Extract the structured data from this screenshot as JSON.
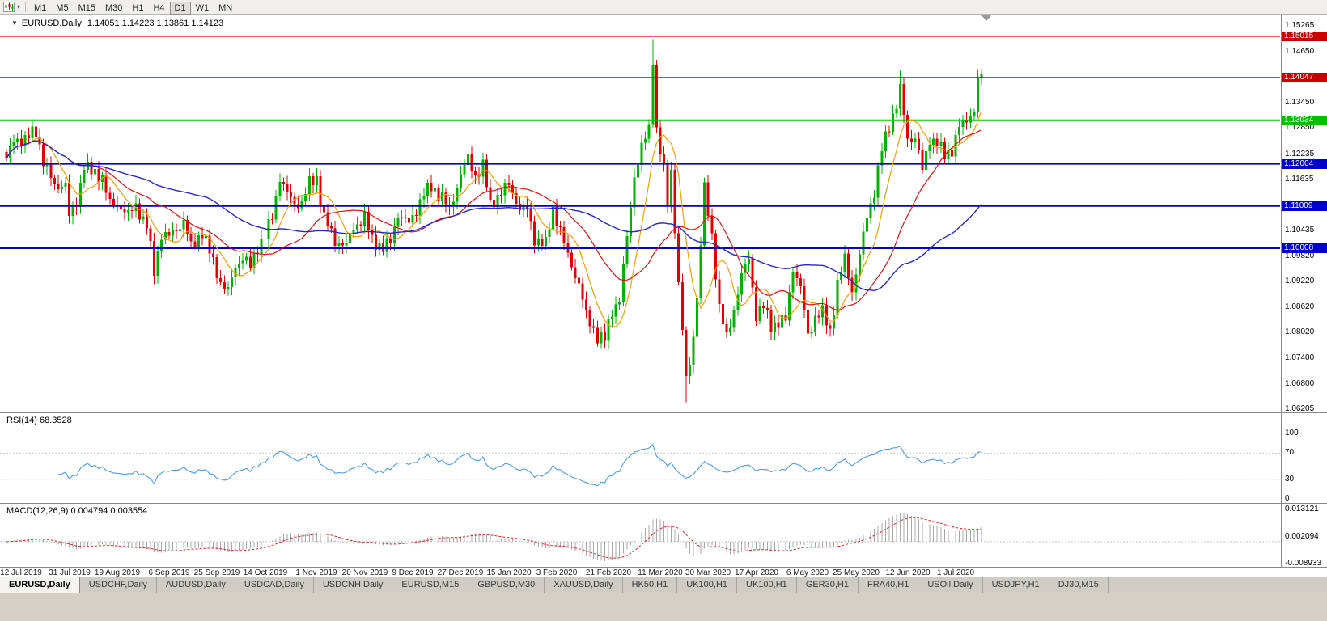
{
  "toolbar": {
    "dropdown_arrow": "▾",
    "icons": {
      "chart_type_icon": "mini-candlestick-chart",
      "dropdown_arrow_icon": "triangle-down"
    },
    "timeframes": [
      {
        "label": "M1",
        "active": false
      },
      {
        "label": "M5",
        "active": false
      },
      {
        "label": "M15",
        "active": false
      },
      {
        "label": "M30",
        "active": false
      },
      {
        "label": "H1",
        "active": false
      },
      {
        "label": "H4",
        "active": false
      },
      {
        "label": "D1",
        "active": true
      },
      {
        "label": "W1",
        "active": false
      },
      {
        "label": "MN",
        "active": false
      }
    ]
  },
  "chart_header": {
    "collapse": "▼",
    "title": "EURUSD,Daily",
    "ohlc": "1.14051 1.14223 1.13861 1.14123"
  },
  "colors": {
    "up": "#00B200",
    "down": "#E00000",
    "ma_fast": "#F0A000",
    "ma_mid": "#E01010",
    "ma_slow": "#2828C8",
    "rsi": "#4A9BE8",
    "macd_hist": "#A8A8A8",
    "macd_signal": "#E02020",
    "line_red": "#C80000",
    "line_green": "#00C000",
    "line_blue": "#0000C8"
  },
  "chart_data": {
    "type": "candlestick",
    "symbol": "EURUSD",
    "timeframe": "Daily",
    "last_bar": {
      "open": 1.14051,
      "high": 1.14223,
      "low": 1.13861,
      "close": 1.14123
    },
    "bars": 265,
    "price_axis": {
      "min": 1.06205,
      "max": 1.15265,
      "ticks": [
        1.15265,
        1.1465,
        1.1345,
        1.1285,
        1.12235,
        1.11635,
        1.10435,
        1.0982,
        1.0922,
        1.0862,
        1.0802,
        1.074,
        1.068,
        1.06205
      ]
    },
    "hlines": [
      {
        "price": 1.15015,
        "color": "#C80000",
        "width": 1
      },
      {
        "price": 1.14047,
        "color": "#C80000",
        "width": 1
      },
      {
        "price": 1.13034,
        "color": "#00C000",
        "width": 2
      },
      {
        "price": 1.12004,
        "color": "#0000C8",
        "width": 2
      },
      {
        "price": 1.11009,
        "color": "#0000C8",
        "width": 2
      },
      {
        "price": 1.10008,
        "color": "#0000C8",
        "width": 2
      }
    ],
    "x_labels": [
      {
        "label": "12 Jul 2019",
        "bar": 4
      },
      {
        "label": "31 Jul 2019",
        "bar": 17
      },
      {
        "label": "19 Aug 2019",
        "bar": 30
      },
      {
        "label": "6 Sep 2019",
        "bar": 44
      },
      {
        "label": "25 Sep 2019",
        "bar": 57
      },
      {
        "label": "14 Oct 2019",
        "bar": 70
      },
      {
        "label": "1 Nov 2019",
        "bar": 84
      },
      {
        "label": "20 Nov 2019",
        "bar": 97
      },
      {
        "label": "9 Dec 2019",
        "bar": 110
      },
      {
        "label": "27 Dec 2019",
        "bar": 123
      },
      {
        "label": "15 Jan 2020",
        "bar": 136
      },
      {
        "label": "3 Feb 2020",
        "bar": 149
      },
      {
        "label": "21 Feb 2020",
        "bar": 163
      },
      {
        "label": "11 Mar 2020",
        "bar": 177
      },
      {
        "label": "30 Mar 2020",
        "bar": 190
      },
      {
        "label": "17 Apr 2020",
        "bar": 203
      },
      {
        "label": "6 May 2020",
        "bar": 217
      },
      {
        "label": "25 May 2020",
        "bar": 230
      },
      {
        "label": "12 Jun 2020",
        "bar": 244
      },
      {
        "label": "1 Jul 2020",
        "bar": 257
      }
    ],
    "close_anchors": [
      [
        0,
        1.1213
      ],
      [
        2,
        1.1253
      ],
      [
        5,
        1.1262
      ],
      [
        8,
        1.1275
      ],
      [
        10,
        1.121
      ],
      [
        13,
        1.1145
      ],
      [
        16,
        1.1155
      ],
      [
        17,
        1.1075
      ],
      [
        19,
        1.1108
      ],
      [
        21,
        1.12
      ],
      [
        23,
        1.118
      ],
      [
        26,
        1.117
      ],
      [
        28,
        1.1105
      ],
      [
        31,
        1.11
      ],
      [
        33,
        1.108
      ],
      [
        35,
        1.11
      ],
      [
        38,
        1.1055
      ],
      [
        40,
        1.0945
      ],
      [
        42,
        1.1035
      ],
      [
        44,
        1.1028
      ],
      [
        46,
        1.1045
      ],
      [
        48,
        1.1065
      ],
      [
        50,
        1.1003
      ],
      [
        53,
        1.104
      ],
      [
        55,
        1.0992
      ],
      [
        58,
        1.092
      ],
      [
        60,
        1.0899
      ],
      [
        62,
        1.0958
      ],
      [
        64,
        1.0979
      ],
      [
        66,
        1.0957
      ],
      [
        68,
        1.1005
      ],
      [
        70,
        1.103
      ],
      [
        72,
        1.1075
      ],
      [
        74,
        1.117
      ],
      [
        76,
        1.113
      ],
      [
        78,
        1.1105
      ],
      [
        80,
        1.111
      ],
      [
        82,
        1.1155
      ],
      [
        84,
        1.1166
      ],
      [
        86,
        1.1073
      ],
      [
        89,
        1.1018
      ],
      [
        92,
        1.1007
      ],
      [
        94,
        1.1051
      ],
      [
        97,
        1.1073
      ],
      [
        99,
        1.1021
      ],
      [
        102,
        1.1
      ],
      [
        104,
        1.1018
      ],
      [
        106,
        1.1082
      ],
      [
        109,
        1.1059
      ],
      [
        111,
        1.1092
      ],
      [
        113,
        1.1131
      ],
      [
        115,
        1.1145
      ],
      [
        118,
        1.1122
      ],
      [
        120,
        1.1089
      ],
      [
        123,
        1.1177
      ],
      [
        125,
        1.1212
      ],
      [
        127,
        1.1172
      ],
      [
        129,
        1.1196
      ],
      [
        131,
        1.1103
      ],
      [
        134,
        1.1134
      ],
      [
        136,
        1.115
      ],
      [
        139,
        1.1095
      ],
      [
        141,
        1.1093
      ],
      [
        143,
        1.1023
      ],
      [
        146,
        1.101
      ],
      [
        148,
        1.1093
      ],
      [
        150,
        1.1043
      ],
      [
        152,
        1.0982
      ],
      [
        155,
        1.0917
      ],
      [
        157,
        1.0842
      ],
      [
        160,
        1.0792
      ],
      [
        162,
        1.0786
      ],
      [
        164,
        1.0853
      ],
      [
        166,
        1.0881
      ],
      [
        168,
        1.1026
      ],
      [
        170,
        1.1173
      ],
      [
        172,
        1.1239
      ],
      [
        174,
        1.1284
      ],
      [
        175,
        1.1451
      ],
      [
        176,
        1.1281
      ],
      [
        178,
        1.1184
      ],
      [
        179,
        1.1109
      ],
      [
        180,
        1.1182
      ],
      [
        182,
        1.0917
      ],
      [
        184,
        1.0693
      ],
      [
        185,
        1.0724
      ],
      [
        187,
        1.0881
      ],
      [
        189,
        1.1141
      ],
      [
        191,
        1.1031
      ],
      [
        193,
        1.0857
      ],
      [
        195,
        1.0791
      ],
      [
        197,
        1.0857
      ],
      [
        199,
        1.0935
      ],
      [
        201,
        1.098
      ],
      [
        203,
        1.084
      ],
      [
        205,
        1.0862
      ],
      [
        207,
        1.082
      ],
      [
        209,
        1.0822
      ],
      [
        211,
        1.0833
      ],
      [
        213,
        1.0955
      ],
      [
        215,
        1.0906
      ],
      [
        217,
        1.0795
      ],
      [
        219,
        1.0838
      ],
      [
        221,
        1.0849
      ],
      [
        223,
        1.0805
      ],
      [
        225,
        1.0916
      ],
      [
        227,
        1.0977
      ],
      [
        229,
        1.0901
      ],
      [
        231,
        1.0983
      ],
      [
        233,
        1.1077
      ],
      [
        235,
        1.1134
      ],
      [
        237,
        1.1234
      ],
      [
        239,
        1.1292
      ],
      [
        241,
        1.134
      ],
      [
        242,
        1.1375
      ],
      [
        244,
        1.1258
      ],
      [
        246,
        1.1264
      ],
      [
        248,
        1.1185
      ],
      [
        250,
        1.126
      ],
      [
        252,
        1.1251
      ],
      [
        254,
        1.1219
      ],
      [
        256,
        1.1234
      ],
      [
        258,
        1.1288
      ],
      [
        260,
        1.1302
      ],
      [
        262,
        1.1322
      ],
      [
        263,
        1.1405
      ],
      [
        264,
        1.14123
      ]
    ],
    "special_bars": {
      "175": {
        "high": 1.1495
      },
      "184": {
        "low": 1.0637
      },
      "242": {
        "high": 1.1422
      }
    },
    "ma_periods": {
      "fast": 8,
      "mid": 24,
      "slow": 55
    }
  },
  "rsi_panel": {
    "label": "RSI(14) 68.3528",
    "period": 14,
    "current": 68.3528,
    "scale_labels": [
      {
        "v": 100,
        "label": "100"
      },
      {
        "v": 70,
        "label": "70"
      },
      {
        "v": 30,
        "label": "30"
      },
      {
        "v": 0,
        "label": "0"
      }
    ],
    "levels": [
      70,
      30
    ]
  },
  "macd_panel": {
    "label": "MACD(12,26,9) 0.004794 0.003554",
    "fast": 12,
    "slow": 26,
    "signal": 9,
    "current_macd": 0.004794,
    "current_signal": 0.003554,
    "scale_labels": [
      {
        "v": 0.013121,
        "label": "0.013121"
      },
      {
        "v": 0.002094,
        "label": "0.002094"
      },
      {
        "v": -0.008933,
        "label": "-0.008933"
      }
    ],
    "zero_level": 0
  },
  "tabs": [
    {
      "label": "EURUSD,Daily",
      "active": true
    },
    {
      "label": "USDCHF,Daily",
      "active": false
    },
    {
      "label": "AUDUSD,Daily",
      "active": false
    },
    {
      "label": "USDCAD,Daily",
      "active": false
    },
    {
      "label": "USDCNH,Daily",
      "active": false
    },
    {
      "label": "EURUSD,M15",
      "active": false
    },
    {
      "label": "GBPUSD,M30",
      "active": false
    },
    {
      "label": "XAUUSD,Daily",
      "active": false
    },
    {
      "label": "HK50,H1",
      "active": false
    },
    {
      "label": "UK100,H1",
      "active": false
    },
    {
      "label": "UK100,H1",
      "active": false
    },
    {
      "label": "GER30,H1",
      "active": false
    },
    {
      "label": "FRA40,H1",
      "active": false
    },
    {
      "label": "USOil,Daily",
      "active": false
    },
    {
      "label": "USDJPY,H1",
      "active": false
    },
    {
      "label": "DJ30,M15",
      "active": false
    }
  ]
}
